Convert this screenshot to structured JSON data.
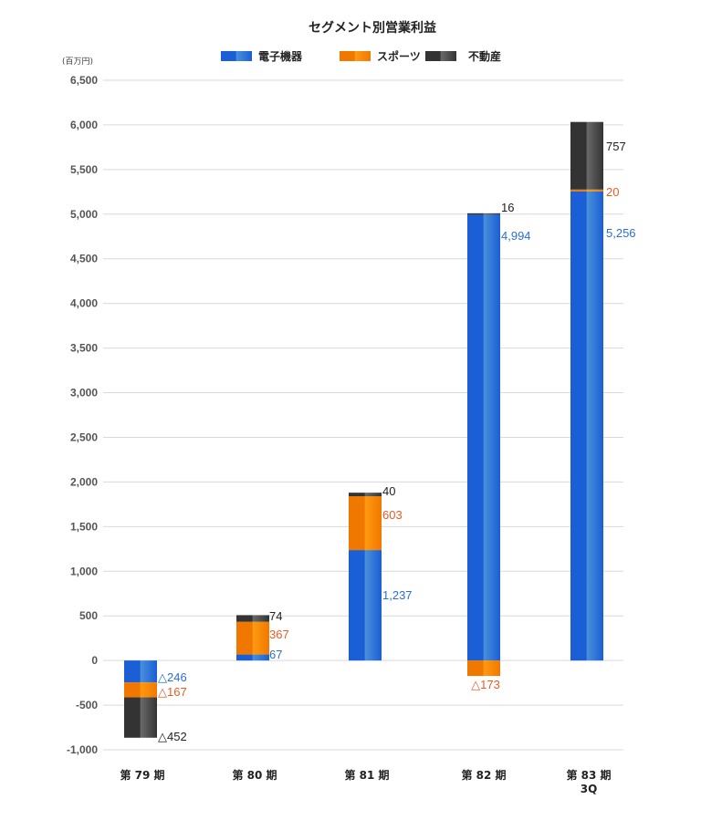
{
  "chart_data": {
    "type": "bar",
    "stacked": true,
    "title": "セグメント別営業利益",
    "unit_label": "(百万円)",
    "xlabel": "",
    "ylabel": "",
    "ylim": [
      -1000,
      6500
    ],
    "yticks": [
      -1000,
      -500,
      0,
      500,
      1000,
      1500,
      2000,
      2500,
      3000,
      3500,
      4000,
      4500,
      5000,
      5500,
      6000,
      6500
    ],
    "ytick_labels": [
      "-1,000",
      "-500",
      "0",
      "500",
      "1,000",
      "1,500",
      "2,000",
      "2,500",
      "3,000",
      "3,500",
      "4,000",
      "4,500",
      "5,000",
      "5,500",
      "6,000",
      "6,500"
    ],
    "grid": true,
    "legend_position": "top-center",
    "categories": [
      [
        "第 79 期"
      ],
      [
        "第 80 期"
      ],
      [
        "第 81 期"
      ],
      [
        "第 82 期"
      ],
      [
        "第 83 期",
        "3Q"
      ]
    ],
    "series": [
      {
        "name": "電子機器",
        "color": "#1a5fd6",
        "color_light": "#4a90d9",
        "label_color": "#2b6fd6",
        "values": [
          -246,
          67,
          1237,
          4994,
          5256
        ],
        "labels": [
          "△246",
          "67",
          "1,237",
          "4,994",
          "5,256"
        ]
      },
      {
        "name": "スポーツ",
        "color": "#f07800",
        "color_light": "#ff9a10",
        "label_color": "#ee5a24",
        "values": [
          -167,
          367,
          603,
          -173,
          20
        ],
        "labels": [
          "△167",
          "367",
          "603",
          "△173",
          "20"
        ]
      },
      {
        "name": "不動産",
        "color": "#333333",
        "color_light": "#6a6a6a",
        "label_color": "#222222",
        "values": [
          -452,
          74,
          40,
          16,
          757
        ],
        "labels": [
          "△452",
          "74",
          "40",
          "16",
          "757"
        ]
      }
    ]
  }
}
